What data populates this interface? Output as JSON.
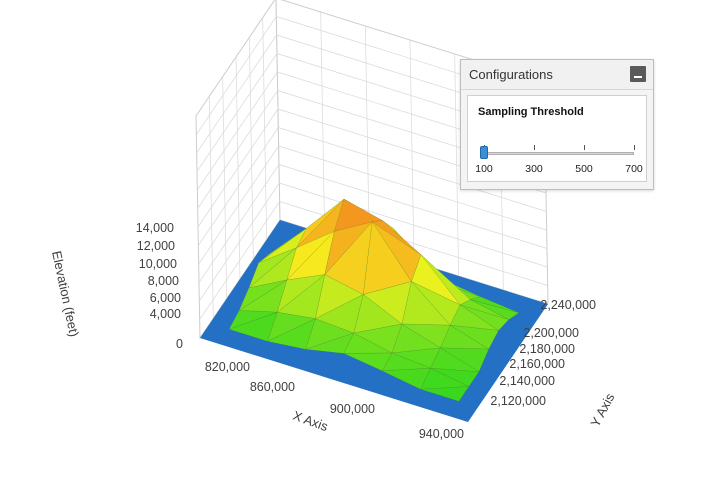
{
  "chart_data": {
    "type": "surface",
    "x_axis": {
      "title": "X Axis",
      "ticks": [
        "820,000",
        "860,000",
        "900,000",
        "940,000"
      ],
      "range": [
        800000,
        940000
      ]
    },
    "y_axis": {
      "title": "Y Axis",
      "ticks": [
        "2,120,000",
        "2,140,000",
        "2,160,000",
        "2,180,000",
        "2,200,000",
        "2,240,000"
      ],
      "range": [
        2100000,
        2260000
      ]
    },
    "z_axis": {
      "title": "Elevation (feet)",
      "ticks": [
        "0",
        "4,000",
        "6,000",
        "8,000",
        "10,000",
        "12,000",
        "14,000"
      ],
      "range": [
        0,
        14000
      ]
    },
    "colors": {
      "floor": "#2470c4",
      "low": "#39d81e",
      "mid": "#f6f21e",
      "high": "#f2771e",
      "grid": "#d8d8d8"
    },
    "surface": {
      "x_values": [
        810000,
        830000,
        850000,
        870000,
        890000,
        910000,
        930000
      ],
      "y_values": [
        2120000,
        2140000,
        2160000,
        2180000,
        2200000,
        2220000,
        2240000
      ],
      "elevation": [
        [
          0,
          0,
          500,
          1500,
          800,
          0,
          0
        ],
        [
          500,
          1800,
          2500,
          2200,
          1200,
          800,
          0
        ],
        [
          1500,
          4000,
          6200,
          5200,
          3000,
          1500,
          0
        ],
        [
          2800,
          6200,
          9800,
          12500,
          6500,
          2500,
          1000
        ],
        [
          2000,
          6800,
          12000,
          10800,
          8000,
          3200,
          1500
        ],
        [
          1000,
          4000,
          9000,
          8000,
          3000,
          2000,
          1000
        ],
        [
          0,
          1200,
          2600,
          2200,
          1200,
          500,
          0
        ]
      ]
    }
  },
  "config_panel": {
    "title": "Configurations",
    "threshold_label": "Sampling Threshold",
    "slider": {
      "min": 100,
      "max": 700,
      "value": 100,
      "ticks": [
        "100",
        "300",
        "500",
        "700"
      ]
    }
  }
}
